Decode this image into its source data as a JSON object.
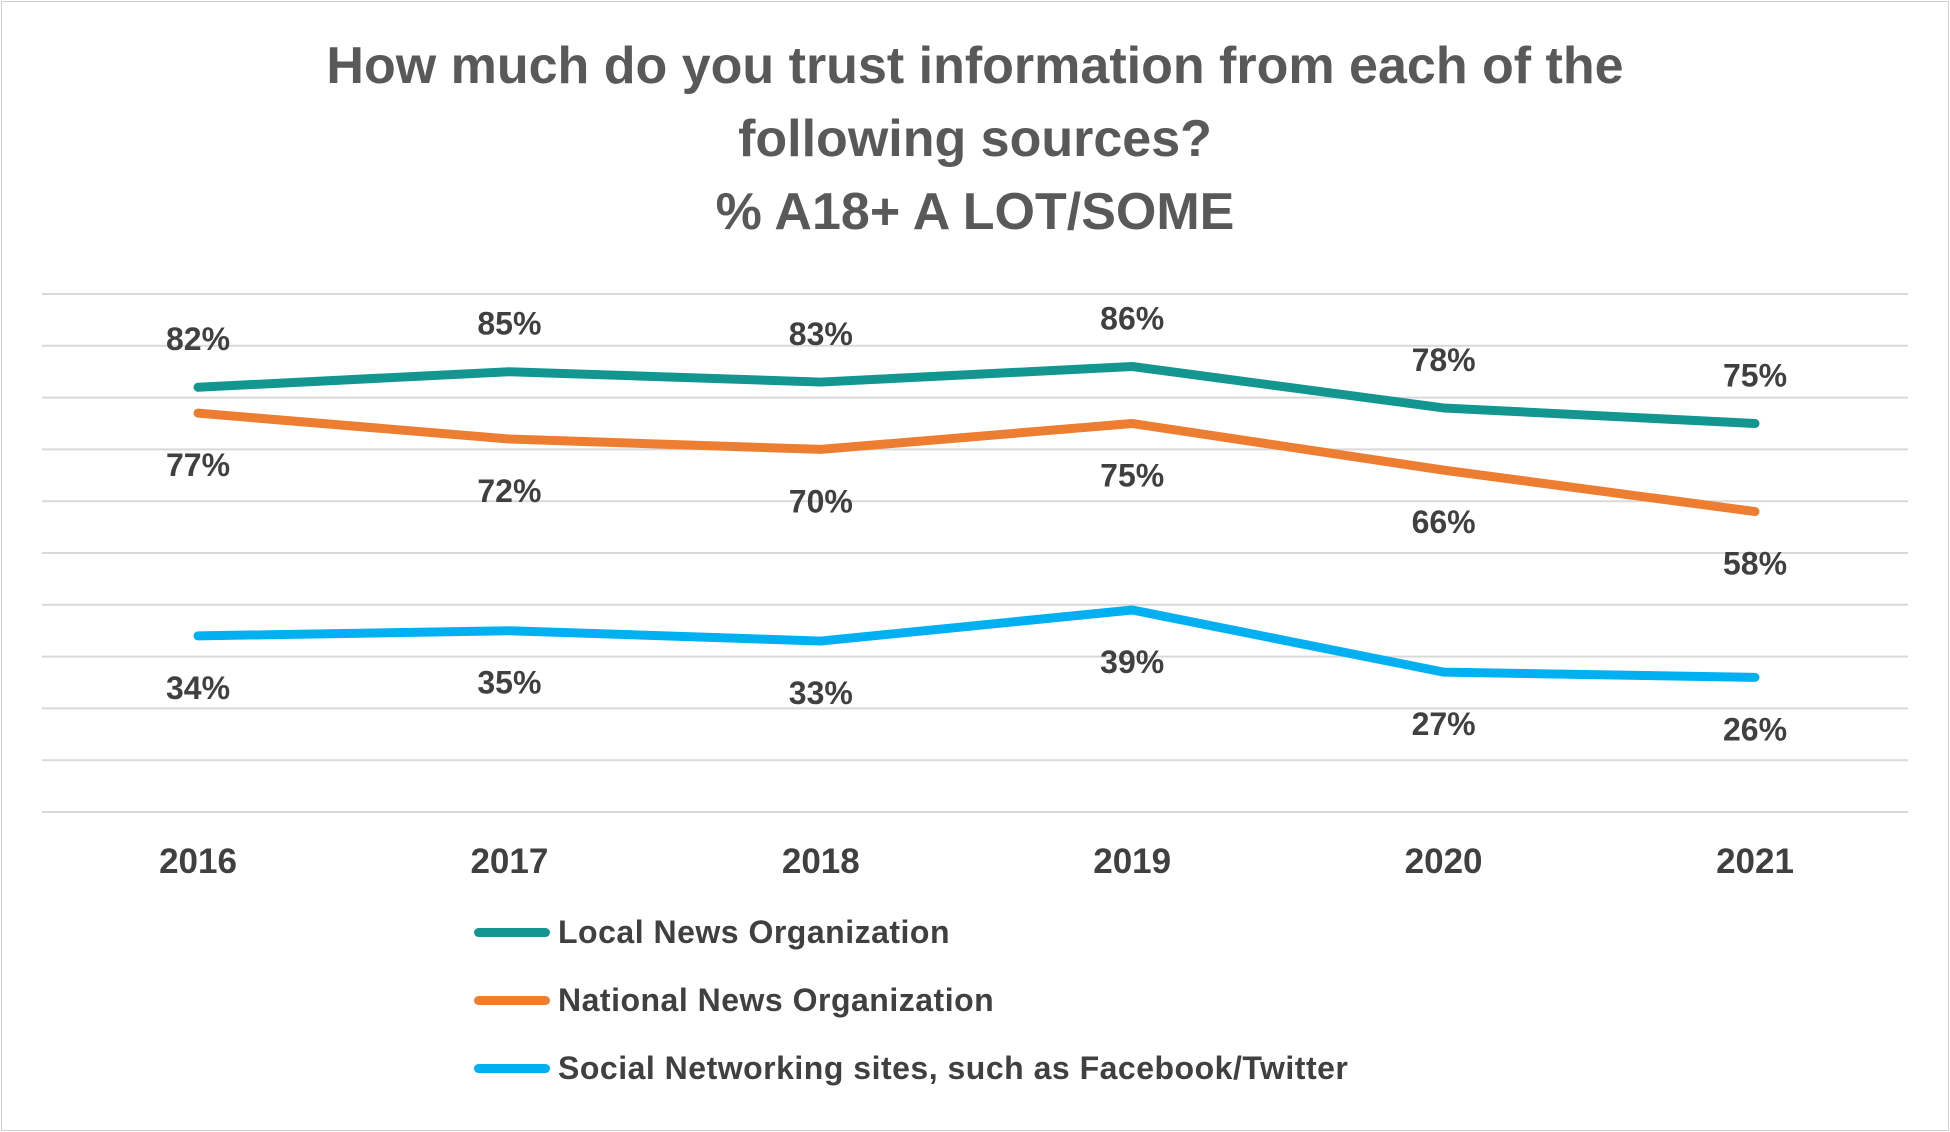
{
  "chart_data": {
    "type": "line",
    "title_lines": [
      "How much do you trust information from each of the",
      "following sources?",
      "% A18+ A LOT/SOME"
    ],
    "categories": [
      "2016",
      "2017",
      "2018",
      "2019",
      "2020",
      "2021"
    ],
    "series": [
      {
        "name": "Local News Organization",
        "color": "#139690",
        "values": [
          82,
          85,
          83,
          86,
          78,
          75
        ],
        "labels": [
          "82%",
          "85%",
          "83%",
          "86%",
          "78%",
          "75%"
        ],
        "label_position": "above"
      },
      {
        "name": "National News Organization",
        "color": "#ED7D31",
        "values": [
          77,
          72,
          70,
          75,
          66,
          58
        ],
        "labels": [
          "77%",
          "72%",
          "70%",
          "75%",
          "66%",
          "58%"
        ],
        "label_position": "below"
      },
      {
        "name": "Social Networking sites, such as Facebook/Twitter",
        "color": "#00B0F0",
        "values": [
          34,
          35,
          33,
          39,
          27,
          26
        ],
        "labels": [
          "34%",
          "35%",
          "33%",
          "39%",
          "27%",
          "26%"
        ],
        "label_position": "below"
      }
    ],
    "ylim": [
      0,
      100
    ],
    "grid": true,
    "legend_position": "bottom"
  }
}
